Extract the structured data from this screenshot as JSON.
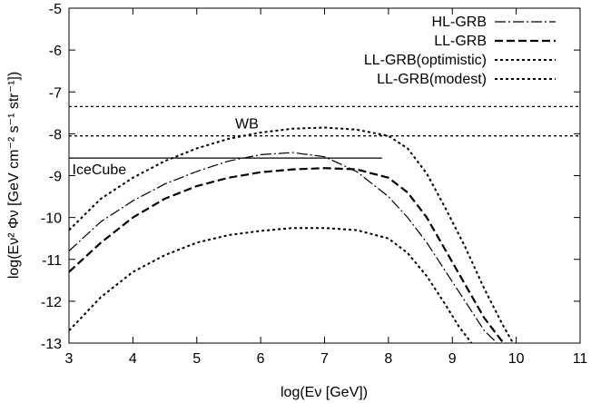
{
  "chart_data": {
    "type": "line",
    "xlabel": "log(Eν [GeV])",
    "ylabel": "log(Eν² Φν [GeV cm⁻² s⁻¹ str⁻¹])",
    "xlim": [
      3,
      11
    ],
    "ylim": [
      -13,
      -5
    ],
    "x_ticks": [
      3,
      4,
      5,
      6,
      7,
      8,
      9,
      10,
      11
    ],
    "y_ticks": [
      -13,
      -12,
      -11,
      -10,
      -9,
      -8,
      -7,
      -6,
      -5
    ],
    "grid": false,
    "legend_position": "top-right",
    "series": [
      {
        "name": "HL-GRB",
        "style": "dash-dot",
        "x": [
          3.0,
          3.5,
          4.0,
          4.5,
          5.0,
          5.5,
          6.0,
          6.5,
          7.0,
          7.5,
          8.0,
          8.3,
          8.6,
          8.9,
          9.2,
          9.5,
          9.7
        ],
        "y": [
          -10.8,
          -10.1,
          -9.6,
          -9.2,
          -8.9,
          -8.65,
          -8.5,
          -8.45,
          -8.55,
          -8.9,
          -9.5,
          -10.0,
          -10.6,
          -11.3,
          -12.0,
          -12.7,
          -13.0
        ]
      },
      {
        "name": "LL-GRB",
        "style": "dashed",
        "x": [
          3.0,
          3.5,
          4.0,
          4.5,
          5.0,
          5.5,
          6.0,
          6.5,
          7.0,
          7.5,
          8.0,
          8.3,
          8.6,
          8.9,
          9.2,
          9.5,
          9.8
        ],
        "y": [
          -11.3,
          -10.6,
          -10.0,
          -9.55,
          -9.25,
          -9.05,
          -8.92,
          -8.85,
          -8.82,
          -8.85,
          -9.05,
          -9.4,
          -10.0,
          -10.8,
          -11.6,
          -12.4,
          -13.0
        ]
      },
      {
        "name": "LL-GRB(optimistic)",
        "style": "dotted",
        "x": [
          3.0,
          3.5,
          4.0,
          4.5,
          5.0,
          5.5,
          6.0,
          6.5,
          7.0,
          7.5,
          8.0,
          8.3,
          8.6,
          8.9,
          9.2,
          9.5,
          9.8,
          9.95
        ],
        "y": [
          -10.3,
          -9.55,
          -9.05,
          -8.65,
          -8.35,
          -8.12,
          -7.97,
          -7.88,
          -7.85,
          -7.9,
          -8.05,
          -8.35,
          -8.95,
          -9.8,
          -10.7,
          -11.7,
          -12.6,
          -13.0
        ]
      },
      {
        "name": "LL-GRB(modest)",
        "style": "dotted",
        "x": [
          3.0,
          3.5,
          4.0,
          4.5,
          5.0,
          5.5,
          6.0,
          6.5,
          7.0,
          7.5,
          8.0,
          8.3,
          8.6,
          8.9,
          9.1,
          9.3
        ],
        "y": [
          -12.7,
          -11.9,
          -11.3,
          -10.9,
          -10.6,
          -10.42,
          -10.32,
          -10.25,
          -10.25,
          -10.3,
          -10.5,
          -10.85,
          -11.4,
          -12.1,
          -12.6,
          -13.0
        ]
      }
    ],
    "reference_lines": [
      {
        "label": "WB",
        "style": "dotted",
        "y_values": [
          -7.35,
          -8.05
        ],
        "x_range": [
          3,
          11
        ]
      },
      {
        "label": "IceCube",
        "style": "solid",
        "y_values": [
          -8.58
        ],
        "x_range": [
          3,
          7.9
        ]
      }
    ]
  }
}
